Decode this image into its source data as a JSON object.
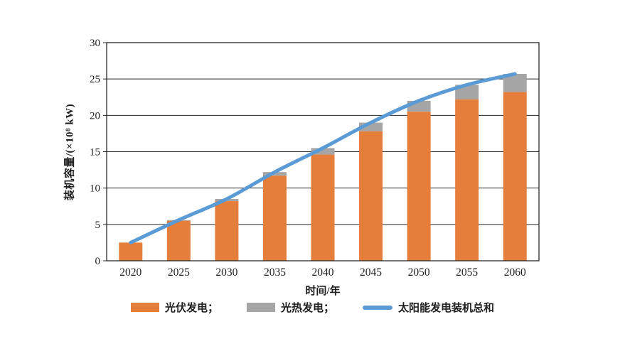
{
  "figure": {
    "background": "#ffffff",
    "axis_color": "#262626",
    "text_color": "#1f1f1f"
  },
  "chart_data": {
    "type": "bar",
    "subtype": "stacked-bars-with-smooth-total-line",
    "title": "",
    "categories": [
      "2020",
      "2025",
      "2030",
      "2035",
      "2040",
      "2045",
      "2050",
      "2055",
      "2060"
    ],
    "series": [
      {
        "name": "光伏发电",
        "type": "bar",
        "stack": true,
        "color": "#E57D3B",
        "values": [
          2.5,
          5.5,
          8.2,
          11.7,
          14.6,
          17.8,
          20.5,
          22.2,
          23.2
        ]
      },
      {
        "name": "光热发电",
        "type": "bar",
        "stack": true,
        "color": "#A5A5A5",
        "values": [
          0,
          0.1,
          0.3,
          0.5,
          0.9,
          1.2,
          1.5,
          2.0,
          2.5
        ]
      },
      {
        "name": "太阳能发电装机总和",
        "type": "line",
        "smooth": true,
        "color": "#5B9BD5",
        "values": [
          2.5,
          5.6,
          8.5,
          12.2,
          15.5,
          19.0,
          22.0,
          24.2,
          25.7
        ]
      }
    ],
    "xlabel": "时间/年",
    "ylabel": "装机容量/(×10⁸ kW)",
    "ylim": [
      0,
      30
    ],
    "yticks": [
      0,
      5,
      10,
      15,
      20,
      25,
      30
    ],
    "grid": "horizontal",
    "plot_border": true,
    "legend_position": "bottom",
    "legend": [
      {
        "label": "光伏发电；",
        "marker": "rect",
        "color": "#E57D3B"
      },
      {
        "label": "光热发电；",
        "marker": "rect",
        "color": "#A5A5A5"
      },
      {
        "label": "太阳能发电装机总和",
        "marker": "line",
        "color": "#5B9BD5"
      }
    ]
  }
}
